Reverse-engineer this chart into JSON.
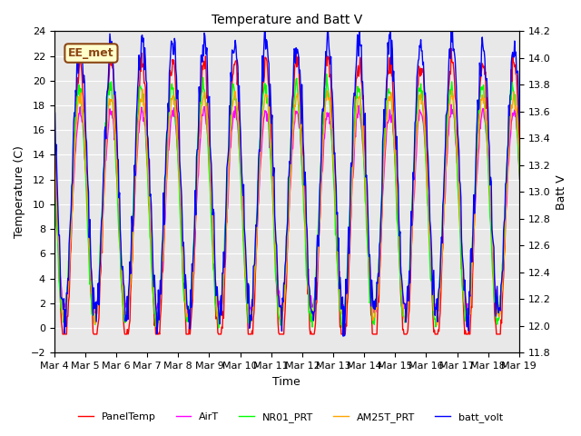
{
  "title": "Temperature and Batt V",
  "xlabel": "Time",
  "ylabel_left": "Temperature (C)",
  "ylabel_right": "Batt V",
  "ylim_left": [
    -2,
    24
  ],
  "ylim_right": [
    11.8,
    14.2
  ],
  "yticks_left": [
    -2,
    0,
    2,
    4,
    6,
    8,
    10,
    12,
    14,
    16,
    18,
    20,
    22,
    24
  ],
  "yticks_right": [
    11.8,
    12.0,
    12.2,
    12.4,
    12.6,
    12.8,
    13.0,
    13.2,
    13.4,
    13.6,
    13.8,
    14.0,
    14.2
  ],
  "xtick_labels": [
    "Mar 4",
    "Mar 5",
    "Mar 6",
    "Mar 7",
    "Mar 8",
    "Mar 9",
    "Mar 10",
    "Mar 11",
    "Mar 12",
    "Mar 13",
    "Mar 14",
    "Mar 15",
    "Mar 16",
    "Mar 17",
    "Mar 18",
    "Mar 19"
  ],
  "legend_labels": [
    "PanelTemp",
    "AirT",
    "NR01_PRT",
    "AM25T_PRT",
    "batt_volt"
  ],
  "annotation_text": "EE_met",
  "annotation_color": "#8B4513",
  "background_color": "#e8e8e8",
  "grid_color": "white",
  "panel_color": "red",
  "air_color": "magenta",
  "nr01_color": "lime",
  "am25_color": "orange",
  "batt_color": "blue",
  "linewidth": 1.0
}
